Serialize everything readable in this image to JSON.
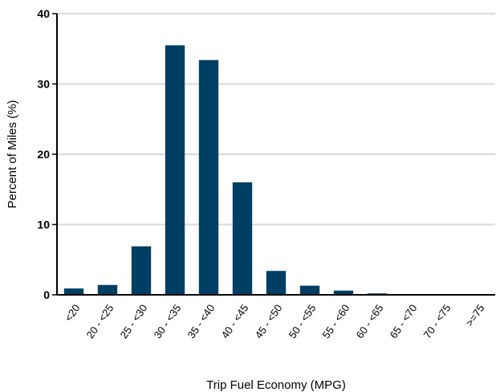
{
  "chart_data": {
    "type": "bar",
    "categories": [
      "<20",
      "20 - <25",
      "25 - <30",
      "30 - <35",
      "35 - <40",
      "40 - <45",
      "45 - <50",
      "50 - <55",
      "55 - <60",
      "60 - <65",
      "65 - <70",
      "70 - <75",
      ">=75"
    ],
    "values": [
      0.9,
      1.4,
      6.9,
      35.5,
      33.4,
      16.0,
      3.4,
      1.3,
      0.6,
      0.2,
      0.05,
      0.03,
      0.02
    ],
    "xlabel": "Trip Fuel Economy (MPG)",
    "ylabel": "Percent of Miles (%)",
    "ylim": [
      0,
      40
    ],
    "yticks": [
      0,
      10,
      20,
      30,
      40
    ],
    "grid": "horizontal",
    "bar_color": "#003f63",
    "grid_color": "#d9d9d9",
    "axis_color": "#000000"
  }
}
